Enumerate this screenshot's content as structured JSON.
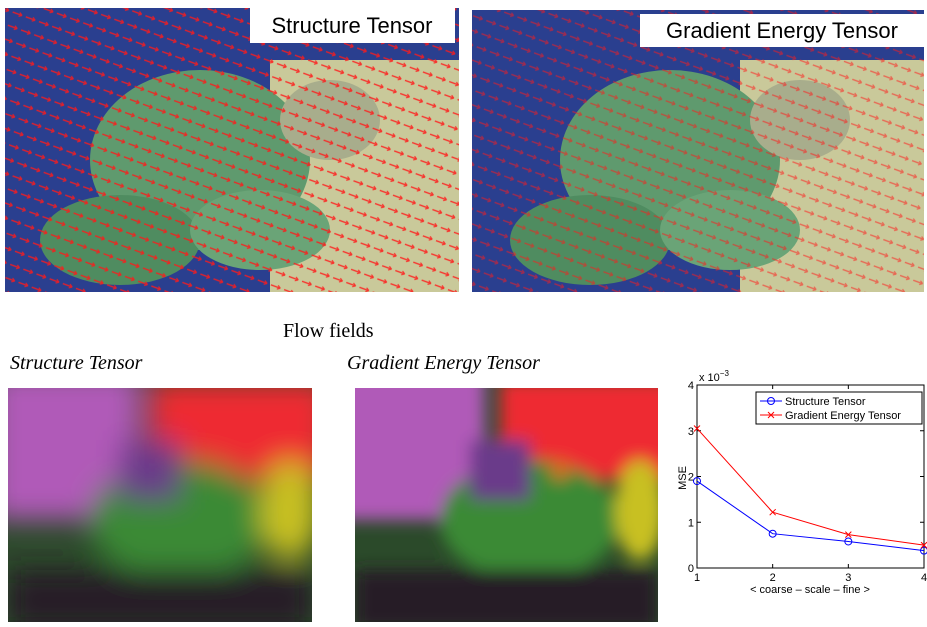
{
  "figure": {
    "top_panels": [
      {
        "label": "Structure Tensor"
      },
      {
        "label": "Gradient Energy Tensor"
      }
    ],
    "caption": "Flow fields",
    "bottom_labels": [
      "Structure Tensor",
      "Gradient Energy Tensor"
    ]
  },
  "chart_data": {
    "type": "line",
    "xlabel": "< coarse – scale – fine >",
    "ylabel": "MSE",
    "ymultiplier": {
      "base": "x 10",
      "exponent": "−3"
    },
    "x": [
      1,
      2,
      3,
      4
    ],
    "xlim": [
      1,
      4
    ],
    "xticks": [
      1,
      2,
      3,
      4
    ],
    "ylim": [
      0,
      4
    ],
    "yticks": [
      0,
      1,
      2,
      3,
      4
    ],
    "legend": "top-right",
    "series": [
      {
        "name": "Structure Tensor",
        "color": "#0000ff",
        "marker": "o",
        "values": [
          1.9,
          0.75,
          0.58,
          0.38
        ]
      },
      {
        "name": "Gradient Energy Tensor",
        "color": "#ff0000",
        "marker": "x",
        "values": [
          3.05,
          1.22,
          0.73,
          0.5
        ]
      }
    ]
  }
}
